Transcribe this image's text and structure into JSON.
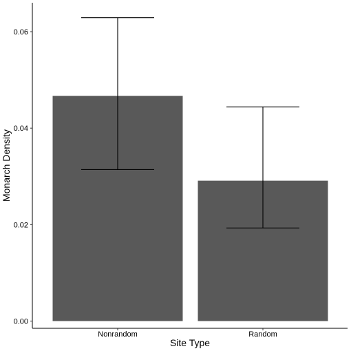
{
  "chart_data": {
    "type": "bar",
    "title": "",
    "xlabel": "Site Type",
    "ylabel": "Monarch Density",
    "categories": [
      "Nonrandom",
      "Random"
    ],
    "values": [
      0.0467,
      0.0291
    ],
    "error_bars": {
      "lower": [
        0.0314,
        0.0193
      ],
      "upper": [
        0.0629,
        0.0444
      ]
    },
    "ylim": [
      -0.0015,
      0.066
    ],
    "yticks": [
      0.0,
      0.02,
      0.04,
      0.06
    ],
    "ytick_labels": [
      "0.00",
      "0.02",
      "0.04",
      "0.06"
    ],
    "grid": false,
    "legend": "none",
    "colors": {
      "bar": "#595959",
      "axis": "#000000",
      "background": "#ffffff"
    }
  }
}
